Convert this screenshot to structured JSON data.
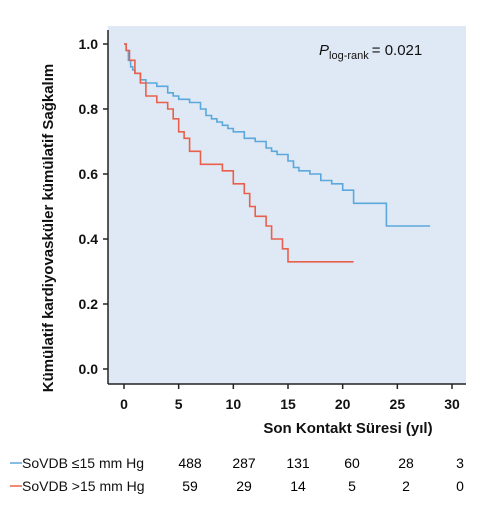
{
  "chart_data": {
    "type": "line",
    "subtype": "kaplan-meier",
    "ylabel": "Kümülatif kardiyovasküler kümülatif Sağkalım",
    "xlabel": "Son Kontakt Süresi (yıl)",
    "annotation": {
      "p_symbol": "P",
      "p_subscript": "log-rank",
      "p_value": "= 0.021"
    },
    "xlim": [
      0,
      30
    ],
    "ylim": [
      0,
      1.0
    ],
    "x_ticks": [
      "0",
      "5",
      "10",
      "15",
      "20",
      "25",
      "30"
    ],
    "x_tick_values": [
      0,
      5,
      10,
      15,
      20,
      25,
      30
    ],
    "y_ticks": [
      "0.0",
      "0.2",
      "0.4",
      "0.6",
      "0.8",
      "1.0"
    ],
    "y_tick_values": [
      0,
      0.2,
      0.4,
      0.6,
      0.8,
      1.0
    ],
    "grid": false,
    "plot_background": "#dfe9f5",
    "series": [
      {
        "name": "SoVDB ≤15 mm Hg",
        "color": "#5aa8dc",
        "x": [
          0,
          0.2,
          0.4,
          0.6,
          0.8,
          1.0,
          1.5,
          2.0,
          3.0,
          4.0,
          4.5,
          5.0,
          6.0,
          7.0,
          7.5,
          8.0,
          8.5,
          9.0,
          9.5,
          10.0,
          11.0,
          12.0,
          13.0,
          13.5,
          14.0,
          15.0,
          15.5,
          16.0,
          17.0,
          18.0,
          19.0,
          20.0,
          21.0,
          22.0,
          23.0,
          24.0,
          25.0,
          26.0,
          27.0,
          28.0
        ],
        "y": [
          1.0,
          0.98,
          0.95,
          0.93,
          0.92,
          0.91,
          0.89,
          0.88,
          0.87,
          0.85,
          0.84,
          0.83,
          0.82,
          0.8,
          0.78,
          0.77,
          0.76,
          0.75,
          0.74,
          0.73,
          0.71,
          0.7,
          0.68,
          0.67,
          0.66,
          0.64,
          0.62,
          0.61,
          0.6,
          0.58,
          0.57,
          0.55,
          0.51,
          0.51,
          0.51,
          0.44,
          0.44,
          0.44,
          0.44,
          0.44
        ]
      },
      {
        "name": "SoVDB >15 mm Hg",
        "color": "#e8604c",
        "x": [
          0,
          0.2,
          0.5,
          1.0,
          1.5,
          2.0,
          3.0,
          4.0,
          4.5,
          5.0,
          5.5,
          6.0,
          7.0,
          9.0,
          10.0,
          11.0,
          11.5,
          12.0,
          13.0,
          13.5,
          14.5,
          15.0,
          17.0,
          19.0,
          21.0
        ],
        "y": [
          1.0,
          0.98,
          0.95,
          0.91,
          0.88,
          0.84,
          0.82,
          0.8,
          0.77,
          0.73,
          0.71,
          0.67,
          0.63,
          0.61,
          0.57,
          0.54,
          0.5,
          0.47,
          0.44,
          0.4,
          0.37,
          0.33,
          0.33,
          0.33,
          0.33
        ]
      }
    ],
    "risk_table": {
      "rows": [
        {
          "label": "SoVDB ≤15 mm Hg",
          "color": "#5aa8dc",
          "counts": [
            "488",
            "287",
            "131",
            "60",
            "28",
            "3"
          ]
        },
        {
          "label": "SoVDB >15 mm Hg",
          "color": "#e8604c",
          "counts": [
            "59",
            "29",
            "14",
            "5",
            "2",
            "0"
          ]
        }
      ]
    }
  }
}
